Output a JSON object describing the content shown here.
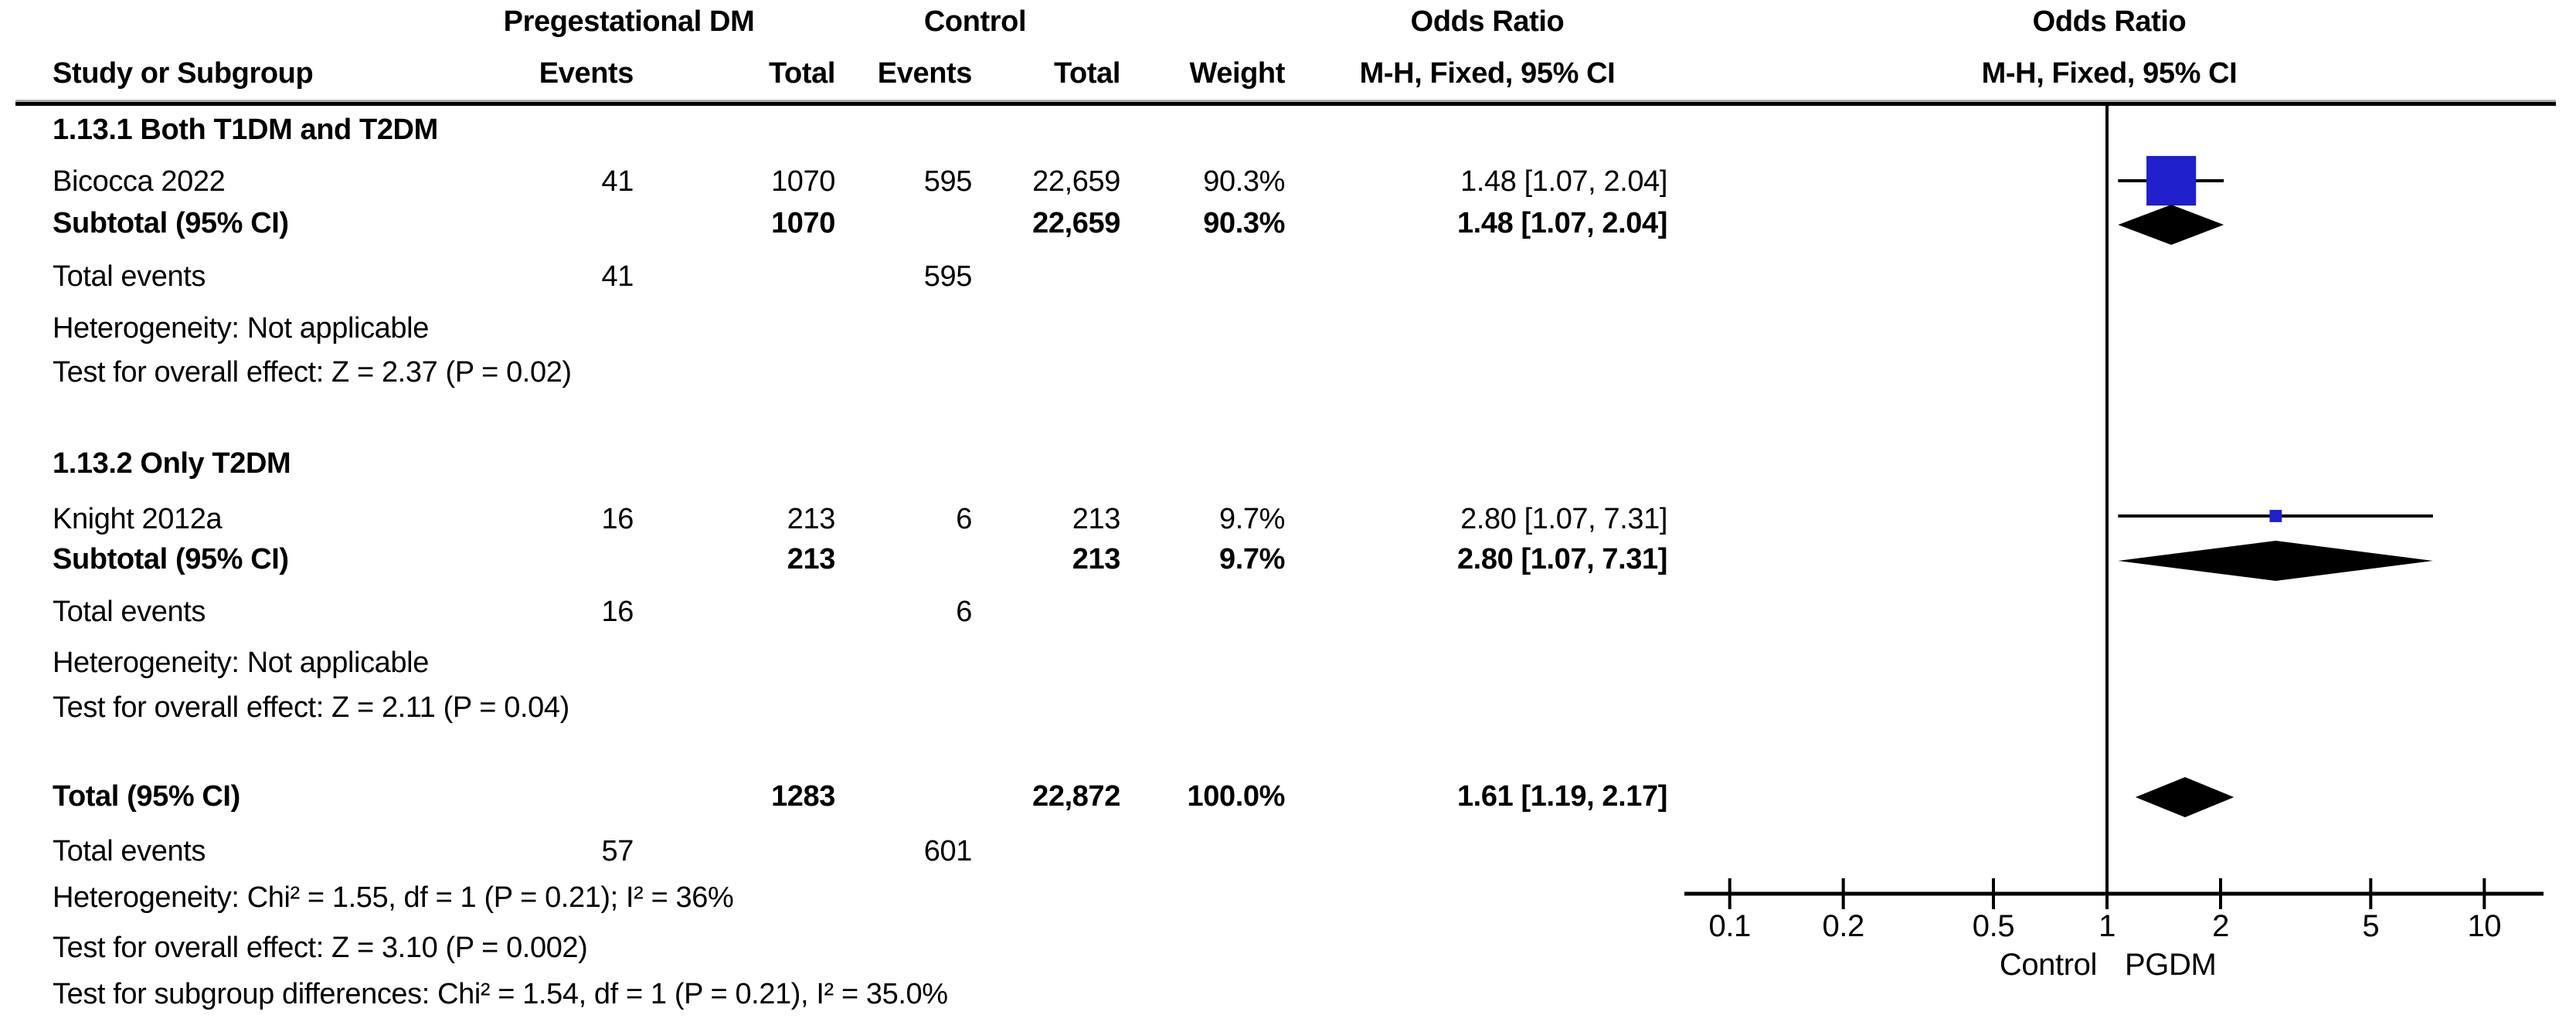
{
  "headers": {
    "group_experimental": "Pregestational DM",
    "group_control": "Control",
    "col_study": "Study or Subgroup",
    "col_events": "Events",
    "col_total": "Total",
    "col_weight": "Weight",
    "or_col": {
      "line1": "Odds Ratio",
      "line2": "M-H, Fixed, 95% CI"
    },
    "plot_col": {
      "line1": "Odds Ratio",
      "line2": "M-H, Fixed, 95% CI"
    }
  },
  "sections": [
    {
      "title": "1.13.1 Both T1DM and T2DM",
      "study": {
        "name": "Bicocca 2022",
        "events1": "41",
        "total1": "1070",
        "events2": "595",
        "total2": "22,659",
        "weight": "90.3%",
        "or_ci": "1.48 [1.07, 2.04]"
      },
      "subtotal": {
        "label": "Subtotal (95% CI)",
        "total1": "1070",
        "total2": "22,659",
        "weight": "90.3%",
        "or_ci": "1.48 [1.07, 2.04]"
      },
      "total_events": {
        "label": "Total events",
        "events1": "41",
        "events2": "595"
      },
      "heterogeneity": "Heterogeneity: Not applicable",
      "overall_effect": "Test for overall effect: Z = 2.37 (P = 0.02)"
    },
    {
      "title": "1.13.2 Only T2DM",
      "study": {
        "name": "Knight 2012a",
        "events1": "16",
        "total1": "213",
        "events2": "6",
        "total2": "213",
        "weight": "9.7%",
        "or_ci": "2.80 [1.07, 7.31]"
      },
      "subtotal": {
        "label": "Subtotal (95% CI)",
        "total1": "213",
        "total2": "213",
        "weight": "9.7%",
        "or_ci": "2.80 [1.07, 7.31]"
      },
      "total_events": {
        "label": "Total events",
        "events1": "16",
        "events2": "6"
      },
      "heterogeneity": "Heterogeneity: Not applicable",
      "overall_effect": "Test for overall effect: Z = 2.11 (P = 0.04)"
    }
  ],
  "total": {
    "label": "Total (95% CI)",
    "total1": "1283",
    "total2": "22,872",
    "weight": "100.0%",
    "or_ci": "1.61 [1.19, 2.17]",
    "total_events": {
      "label": "Total events",
      "events1": "57",
      "events2": "601"
    },
    "heterogeneity": "Heterogeneity: Chi² = 1.55, df = 1 (P = 0.21); I² = 36%",
    "overall_effect": "Test for overall effect: Z = 3.10 (P = 0.002)",
    "subgroup_diff": "Test for subgroup differences: Chi² = 1.54, df = 1 (P = 0.21), I² = 35.0%"
  },
  "chart_data": {
    "type": "forest",
    "x_scale": "log10",
    "x_ticks": [
      "0.1",
      "0.2",
      "0.5",
      "1",
      "2",
      "5",
      "10"
    ],
    "x_range": [
      0.1,
      10
    ],
    "null_value": 1,
    "favours_left": "Control",
    "favours_right": "PGDM",
    "marker_color": "#1f1fcb",
    "line_color": "#000000",
    "rows": [
      {
        "label": "Bicocca 2022",
        "marker": "square",
        "or": 1.48,
        "ci_low": 1.07,
        "ci_high": 2.04,
        "weight_pct": 90.3
      },
      {
        "label": "Subtotal: Both T1DM and T2DM",
        "marker": "diamond",
        "or": 1.48,
        "ci_low": 1.07,
        "ci_high": 2.04
      },
      {
        "label": "Knight 2012a",
        "marker": "square",
        "or": 2.8,
        "ci_low": 1.07,
        "ci_high": 7.31,
        "weight_pct": 9.7
      },
      {
        "label": "Subtotal: Only T2DM",
        "marker": "diamond",
        "or": 2.8,
        "ci_low": 1.07,
        "ci_high": 7.31
      },
      {
        "label": "Total",
        "marker": "diamond",
        "or": 1.61,
        "ci_low": 1.19,
        "ci_high": 2.17
      }
    ]
  }
}
